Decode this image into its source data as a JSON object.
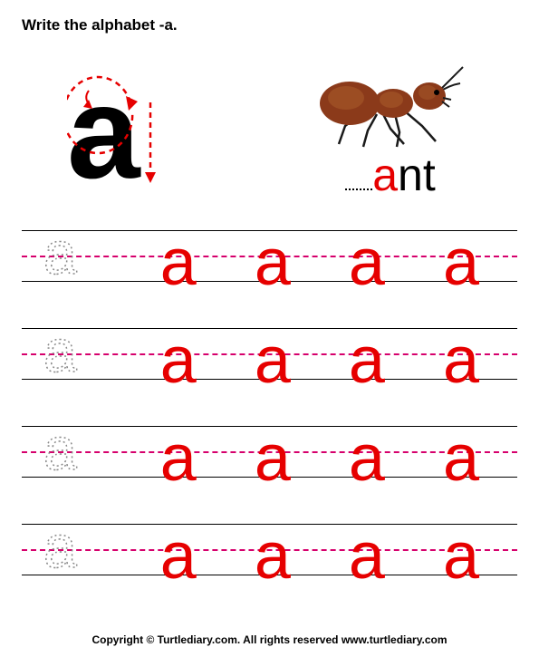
{
  "instruction_prefix": "Write the alphabet -",
  "letter": "a",
  "instruction_suffix": ".",
  "word": {
    "highlighted": "a",
    "rest": "nt"
  },
  "practice": {
    "rows": 4,
    "trace_letter": "a",
    "solid_letter": "a",
    "solid_per_row": 4,
    "trace_color": "#888888",
    "solid_color": "#e60000",
    "midline_color": "#d6006c",
    "line_color": "#000000"
  },
  "ant_illustration": {
    "body_color": "#8b3a1a",
    "body_highlight": "#a85a2a",
    "leg_color": "#1a1a1a",
    "width": 170,
    "height": 100
  },
  "guide_arrows": {
    "arrow_color": "#e60000",
    "dash": "5,4"
  },
  "footer": "Copyright © Turtlediary.com. All rights reserved   www.turtlediary.com"
}
